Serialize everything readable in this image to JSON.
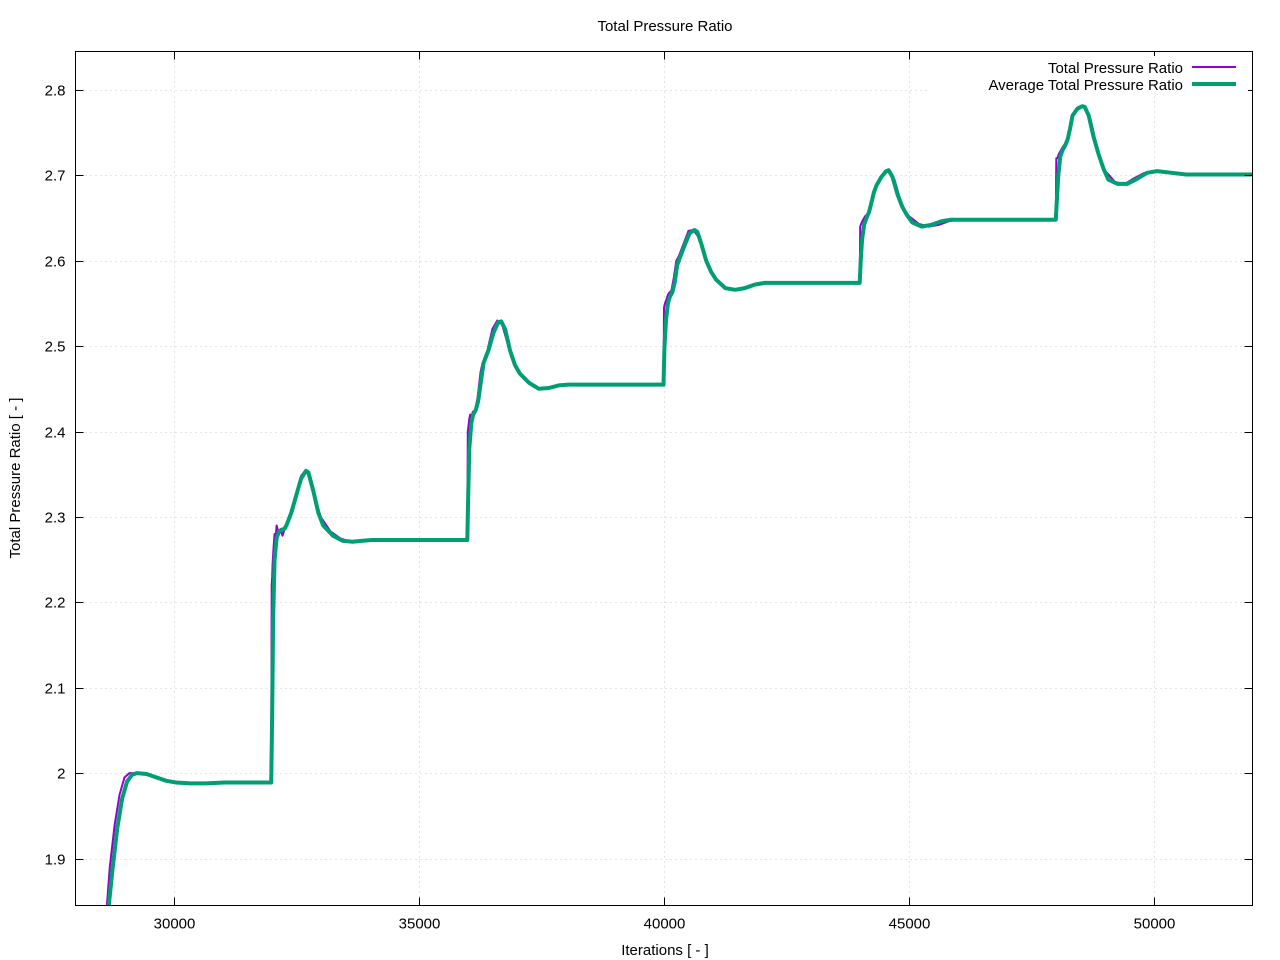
{
  "chart_data": {
    "type": "line",
    "title": "Total Pressure Ratio",
    "xlabel": "Iterations [ - ]",
    "ylabel": "Total Pressure Ratio [ - ]",
    "xlim": [
      28000,
      52000
    ],
    "ylim": [
      1.845,
      2.845
    ],
    "xticks": [
      30000,
      35000,
      40000,
      45000,
      50000
    ],
    "yticks": [
      1.9,
      2.0,
      2.1,
      2.2,
      2.3,
      2.4,
      2.5,
      2.6,
      2.7,
      2.8
    ],
    "xtick_labels": [
      "30000",
      "35000",
      "40000",
      "45000",
      "50000"
    ],
    "ytick_labels": [
      "1.9",
      "2",
      "2.1",
      "2.2",
      "2.3",
      "2.4",
      "2.5",
      "2.6",
      "2.7",
      "2.8"
    ],
    "grid": true,
    "legend_position": "top-right",
    "series": [
      {
        "name": "Total Pressure Ratio",
        "color": "#9400d3",
        "line_width": "thin",
        "x": [
          28640,
          28700,
          28800,
          28900,
          29000,
          29100,
          29200,
          29400,
          29600,
          29800,
          30000,
          30300,
          30600,
          31000,
          31500,
          31990,
          32000,
          32010,
          32020,
          32040,
          32060,
          32080,
          32100,
          32150,
          32180,
          32220,
          32260,
          32300,
          32400,
          32500,
          32600,
          32700,
          32800,
          32900,
          33000,
          33200,
          33400,
          33600,
          33800,
          34000,
          35000,
          35990,
          36000,
          36010,
          36030,
          36050,
          36080,
          36100,
          36150,
          36200,
          36260,
          36300,
          36400,
          36500,
          36600,
          36700,
          36800,
          36900,
          37000,
          37200,
          37400,
          37600,
          37800,
          38000,
          39000,
          39990,
          40000,
          40020,
          40050,
          40080,
          40100,
          40150,
          40200,
          40250,
          40300,
          40400,
          40500,
          40600,
          40700,
          40800,
          40900,
          41000,
          41200,
          41400,
          41600,
          41800,
          42000,
          43000,
          43990,
          44000,
          44020,
          44050,
          44100,
          44150,
          44200,
          44250,
          44300,
          44400,
          44500,
          44600,
          44700,
          44800,
          44900,
          45000,
          45200,
          45400,
          45600,
          45800,
          46000,
          47000,
          47990,
          48000,
          48020,
          48050,
          48100,
          48150,
          48200,
          48250,
          48300,
          48400,
          48500,
          48600,
          48700,
          48800,
          48900,
          49000,
          49200,
          49400,
          49600,
          49800,
          50000,
          50300,
          50600,
          51000,
          51500,
          52000
        ],
        "y": [
          1.845,
          1.89,
          1.94,
          1.975,
          1.995,
          2.0,
          2.0,
          1.999,
          1.995,
          1.991,
          1.989,
          1.988,
          1.988,
          1.989,
          1.989,
          1.989,
          2.22,
          2.23,
          2.245,
          2.265,
          2.28,
          2.275,
          2.29,
          2.28,
          2.285,
          2.278,
          2.285,
          2.29,
          2.305,
          2.325,
          2.348,
          2.355,
          2.345,
          2.32,
          2.3,
          2.283,
          2.275,
          2.271,
          2.272,
          2.273,
          2.273,
          2.273,
          2.4,
          2.405,
          2.415,
          2.42,
          2.418,
          2.423,
          2.425,
          2.44,
          2.47,
          2.48,
          2.495,
          2.52,
          2.53,
          2.525,
          2.505,
          2.485,
          2.473,
          2.46,
          2.451,
          2.451,
          2.454,
          2.455,
          2.455,
          2.455,
          2.545,
          2.55,
          2.555,
          2.56,
          2.562,
          2.565,
          2.58,
          2.6,
          2.605,
          2.62,
          2.635,
          2.636,
          2.628,
          2.61,
          2.595,
          2.583,
          2.57,
          2.566,
          2.568,
          2.572,
          2.574,
          2.574,
          2.574,
          2.64,
          2.643,
          2.647,
          2.652,
          2.655,
          2.66,
          2.675,
          2.685,
          2.695,
          2.705,
          2.706,
          2.695,
          2.675,
          2.66,
          2.652,
          2.643,
          2.64,
          2.642,
          2.646,
          2.648,
          2.648,
          2.648,
          2.72,
          2.72,
          2.725,
          2.73,
          2.735,
          2.738,
          2.745,
          2.765,
          2.775,
          2.781,
          2.78,
          2.765,
          2.74,
          2.72,
          2.705,
          2.692,
          2.69,
          2.697,
          2.703,
          2.705,
          2.703,
          2.701,
          2.701,
          2.701,
          2.701
        ]
      },
      {
        "name": "Average Total Pressure Ratio",
        "color": "#009e73",
        "line_width": "thick",
        "x": [
          28680,
          28750,
          28850,
          28950,
          29050,
          29150,
          29250,
          29450,
          29650,
          29850,
          30050,
          30350,
          30650,
          31050,
          31550,
          31990,
          32010,
          32030,
          32060,
          32100,
          32150,
          32200,
          32260,
          32300,
          32400,
          32500,
          32600,
          32700,
          32750,
          32850,
          32950,
          33050,
          33250,
          33450,
          33650,
          33850,
          34050,
          35000,
          35990,
          36010,
          36030,
          36070,
          36110,
          36160,
          36210,
          36270,
          36320,
          36420,
          36520,
          36620,
          36680,
          36760,
          36860,
          36960,
          37060,
          37250,
          37450,
          37650,
          37850,
          38050,
          39000,
          39990,
          40010,
          40040,
          40080,
          40120,
          40170,
          40220,
          40270,
          40320,
          40420,
          40520,
          40620,
          40680,
          40760,
          40860,
          40960,
          41060,
          41250,
          41450,
          41650,
          41850,
          42050,
          43000,
          43990,
          44010,
          44040,
          44080,
          44130,
          44180,
          44230,
          44280,
          44330,
          44430,
          44530,
          44580,
          44660,
          44760,
          44860,
          44960,
          45060,
          45250,
          45450,
          45650,
          45850,
          46050,
          47000,
          47990,
          48010,
          48040,
          48080,
          48130,
          48180,
          48230,
          48280,
          48330,
          48430,
          48530,
          48580,
          48660,
          48760,
          48860,
          48960,
          49060,
          49250,
          49450,
          49650,
          49850,
          50050,
          50350,
          50650,
          51050,
          51550,
          52000
        ],
        "y": [
          1.845,
          1.885,
          1.935,
          1.97,
          1.99,
          1.998,
          2.0,
          1.999,
          1.995,
          1.991,
          1.989,
          1.988,
          1.988,
          1.989,
          1.989,
          1.989,
          2.07,
          2.18,
          2.25,
          2.275,
          2.283,
          2.285,
          2.286,
          2.29,
          2.305,
          2.325,
          2.345,
          2.354,
          2.352,
          2.33,
          2.305,
          2.29,
          2.278,
          2.272,
          2.271,
          2.272,
          2.273,
          2.273,
          2.273,
          2.33,
          2.38,
          2.41,
          2.42,
          2.425,
          2.435,
          2.46,
          2.48,
          2.495,
          2.515,
          2.528,
          2.529,
          2.52,
          2.495,
          2.478,
          2.468,
          2.457,
          2.45,
          2.451,
          2.454,
          2.455,
          2.455,
          2.455,
          2.5,
          2.53,
          2.55,
          2.558,
          2.563,
          2.575,
          2.595,
          2.603,
          2.618,
          2.632,
          2.636,
          2.634,
          2.62,
          2.6,
          2.587,
          2.578,
          2.568,
          2.566,
          2.568,
          2.572,
          2.574,
          2.574,
          2.574,
          2.6,
          2.625,
          2.642,
          2.65,
          2.657,
          2.668,
          2.68,
          2.688,
          2.698,
          2.705,
          2.706,
          2.698,
          2.678,
          2.663,
          2.653,
          2.645,
          2.64,
          2.642,
          2.646,
          2.648,
          2.648,
          2.648,
          2.648,
          2.67,
          2.7,
          2.722,
          2.73,
          2.735,
          2.742,
          2.755,
          2.77,
          2.778,
          2.781,
          2.78,
          2.77,
          2.745,
          2.725,
          2.708,
          2.695,
          2.69,
          2.69,
          2.696,
          2.703,
          2.705,
          2.703,
          2.701,
          2.701,
          2.701,
          2.701
        ]
      }
    ]
  }
}
